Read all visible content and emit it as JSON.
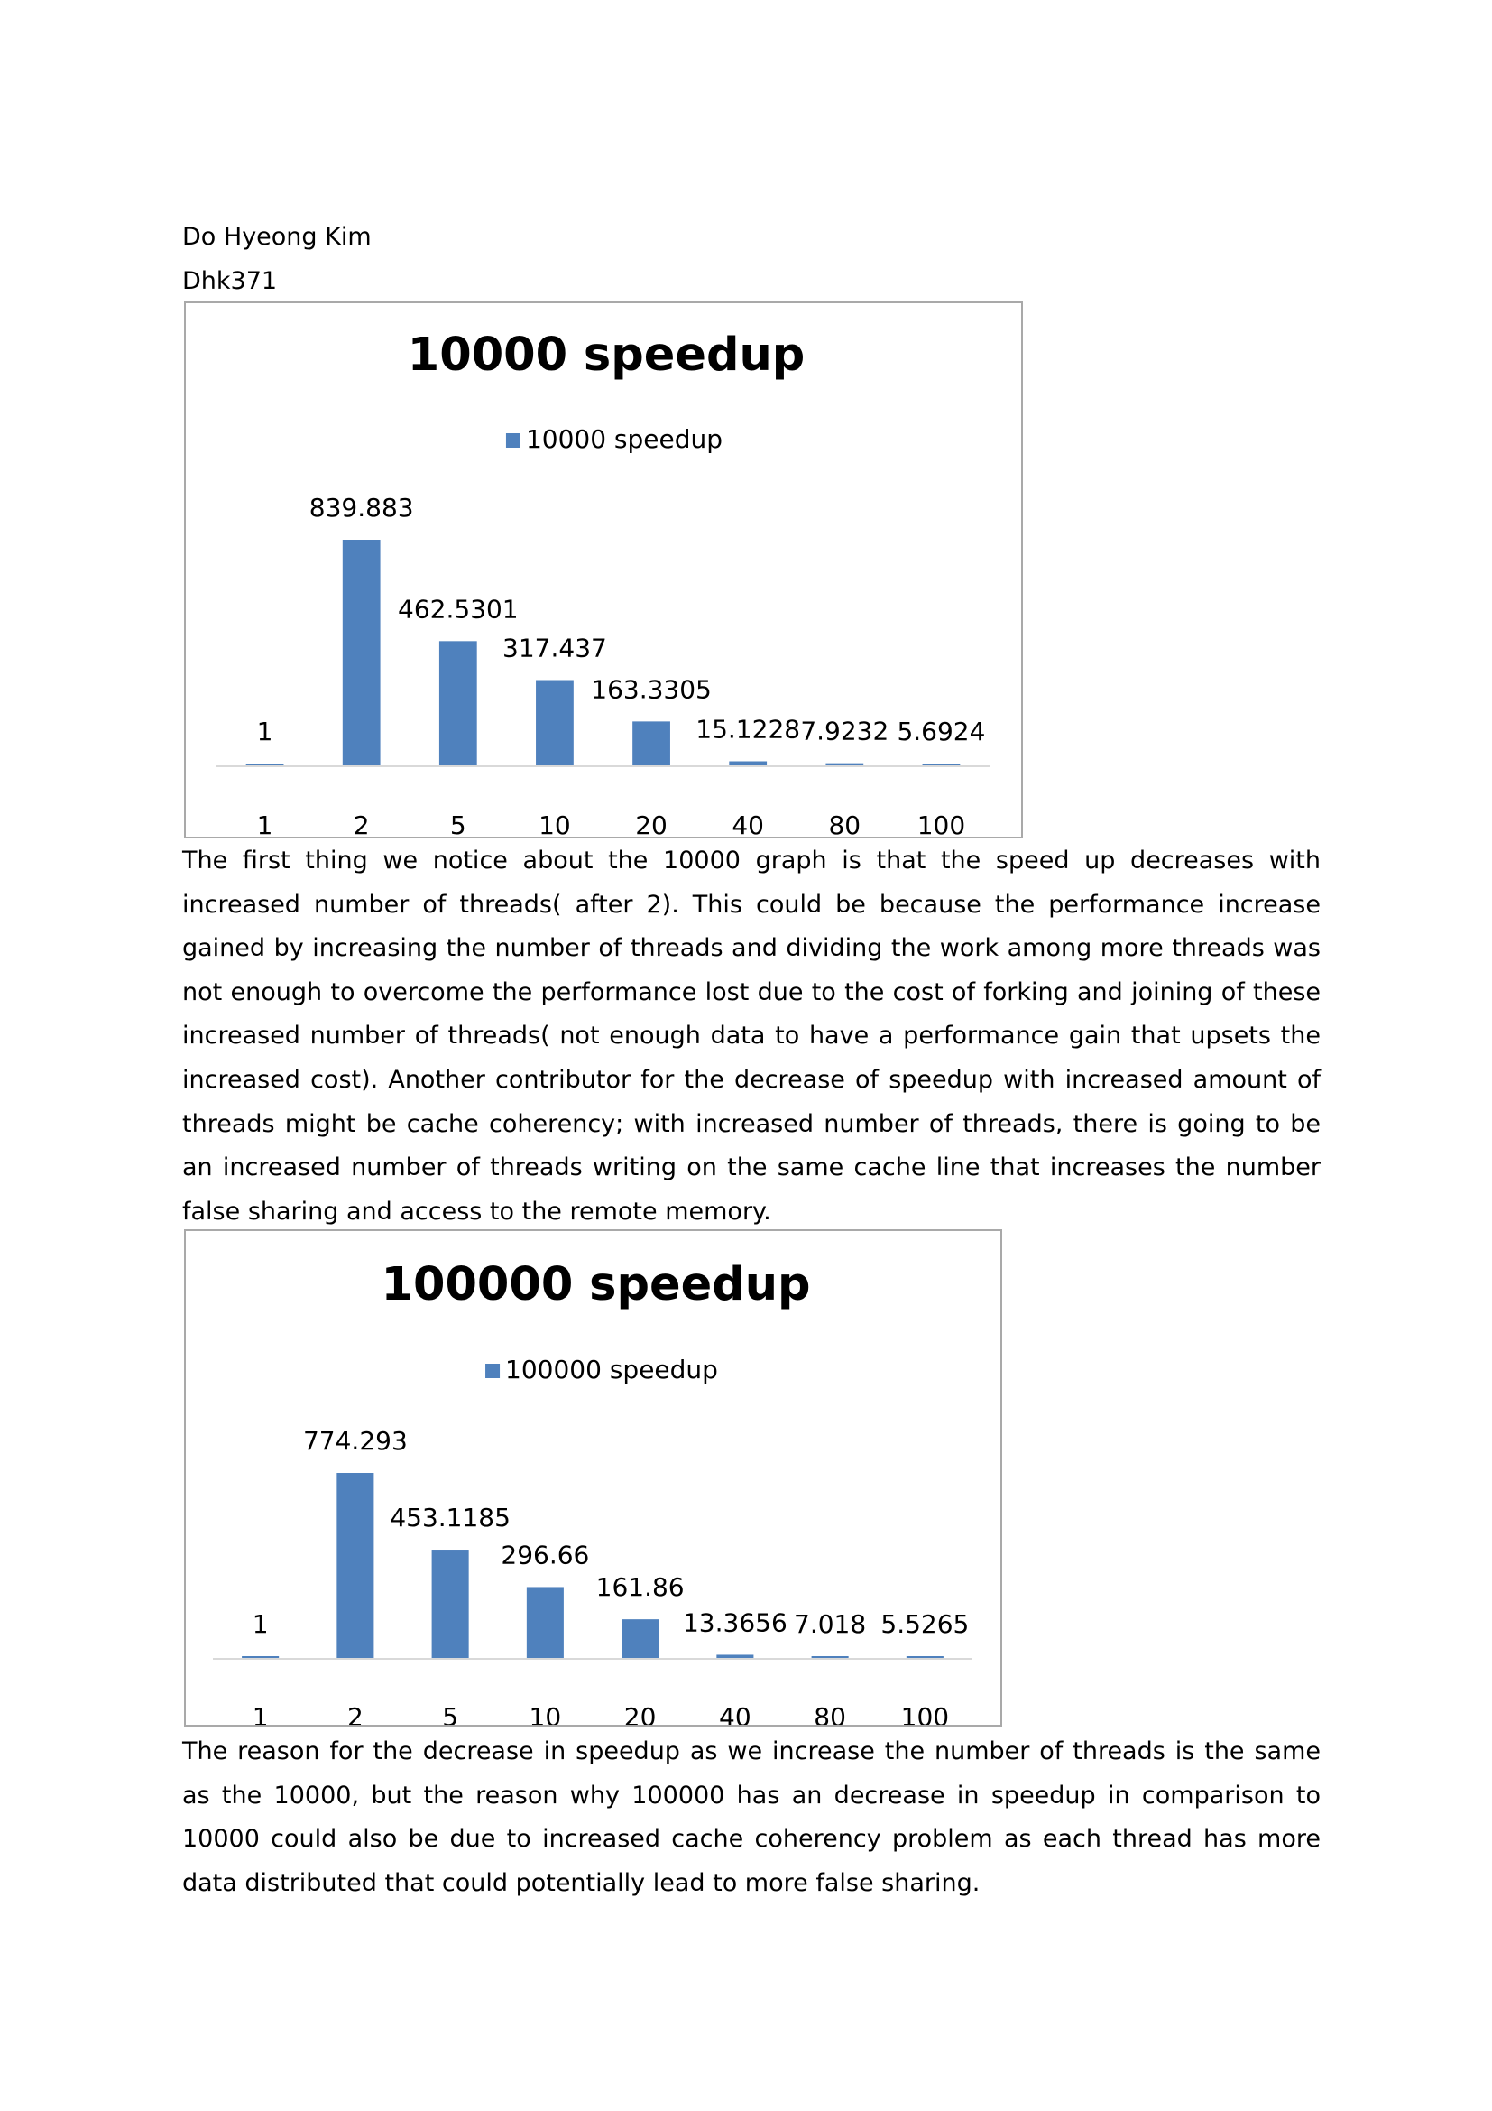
{
  "header": {
    "author": "Do Hyeong Kim",
    "id": "Dhk371"
  },
  "paragraphs": [
    "The first thing we notice about the 10000 graph is that the speed up decreases with increased number of threads( after 2). This could be because the performance increase gained by increasing the number of threads and dividing the work among more threads was not enough to overcome the performance lost due to the cost of forking and joining of these increased number of threads( not enough data to have a performance gain that upsets the increased cost). Another contributor for the decrease of speedup with increased amount of threads might be cache coherency; with increased number of threads, there is going to be an increased number of threads writing on the same cache line that increases the number false sharing and access to the remote memory.",
    "The reason for the decrease in speedup as we increase the number of threads is the same as the 10000, but the reason why 100000 has an decrease in speedup in comparison to 10000 could also be due to increased cache coherency problem as each thread has more data distributed that could potentially lead to more false sharing."
  ],
  "colors": {
    "bar": "#4f81bd",
    "axis": "#d9d9d9",
    "border": "#a9a9a9"
  },
  "chart_data": [
    {
      "type": "bar",
      "title": "10000 speedup",
      "categories": [
        "1",
        "2",
        "5",
        "10",
        "20",
        "40",
        "80",
        "100"
      ],
      "series": [
        {
          "name": "10000 speedup",
          "values": [
            1,
            839.883,
            462.5301,
            317.437,
            163.3305,
            15.1228,
            7.9232,
            5.6924
          ],
          "labels": [
            "1",
            "839.883",
            "462.5301",
            "317.437",
            "163.3305",
            "15.1228",
            "7.9232",
            "5.6924"
          ]
        }
      ],
      "legend": "top",
      "grid": false,
      "ylim": [
        0,
        839.883
      ]
    },
    {
      "type": "bar",
      "title": "100000 speedup",
      "categories": [
        "1",
        "2",
        "5",
        "10",
        "20",
        "40",
        "80",
        "100"
      ],
      "series": [
        {
          "name": "100000 speedup",
          "values": [
            1,
            774.293,
            453.1185,
            296.66,
            161.86,
            13.3656,
            7.018,
            5.5265
          ],
          "labels": [
            "1",
            "774.293",
            "453.1185",
            "296.66",
            "161.86",
            "13.3656",
            "7.018",
            "5.5265"
          ]
        }
      ],
      "legend": "top",
      "grid": false,
      "ylim": [
        0,
        774.293
      ]
    }
  ]
}
